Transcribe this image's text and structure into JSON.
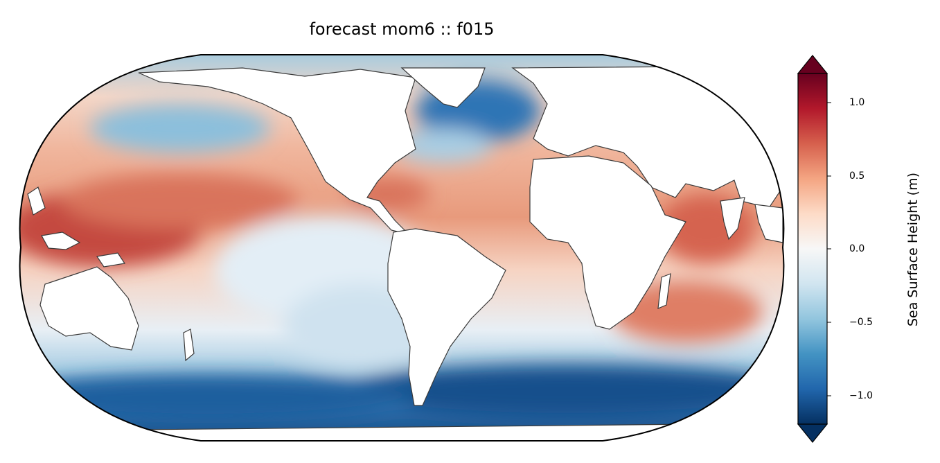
{
  "title": "forecast mom6 :: f015",
  "projection": "robinson",
  "colormap": "RdBu_r",
  "colorbar": {
    "label": "Sea Surface Height (m)",
    "range": [
      -1.2,
      1.2
    ],
    "extend": "both",
    "ticks": [
      {
        "value": 1.0,
        "label": "1.0"
      },
      {
        "value": 0.5,
        "label": "0.5"
      },
      {
        "value": 0.0,
        "label": "0.0"
      },
      {
        "value": -0.5,
        "label": "−0.5"
      },
      {
        "value": -1.0,
        "label": "−1.0"
      }
    ],
    "colors": [
      "#67001f",
      "#b2182b",
      "#d6604d",
      "#f4a582",
      "#fddbc7",
      "#f7f7f7",
      "#d1e5f0",
      "#92c5de",
      "#4393c3",
      "#2166ac",
      "#053061"
    ]
  },
  "land_color": "#ffffff",
  "coastline_color": "#3a3a3a"
}
